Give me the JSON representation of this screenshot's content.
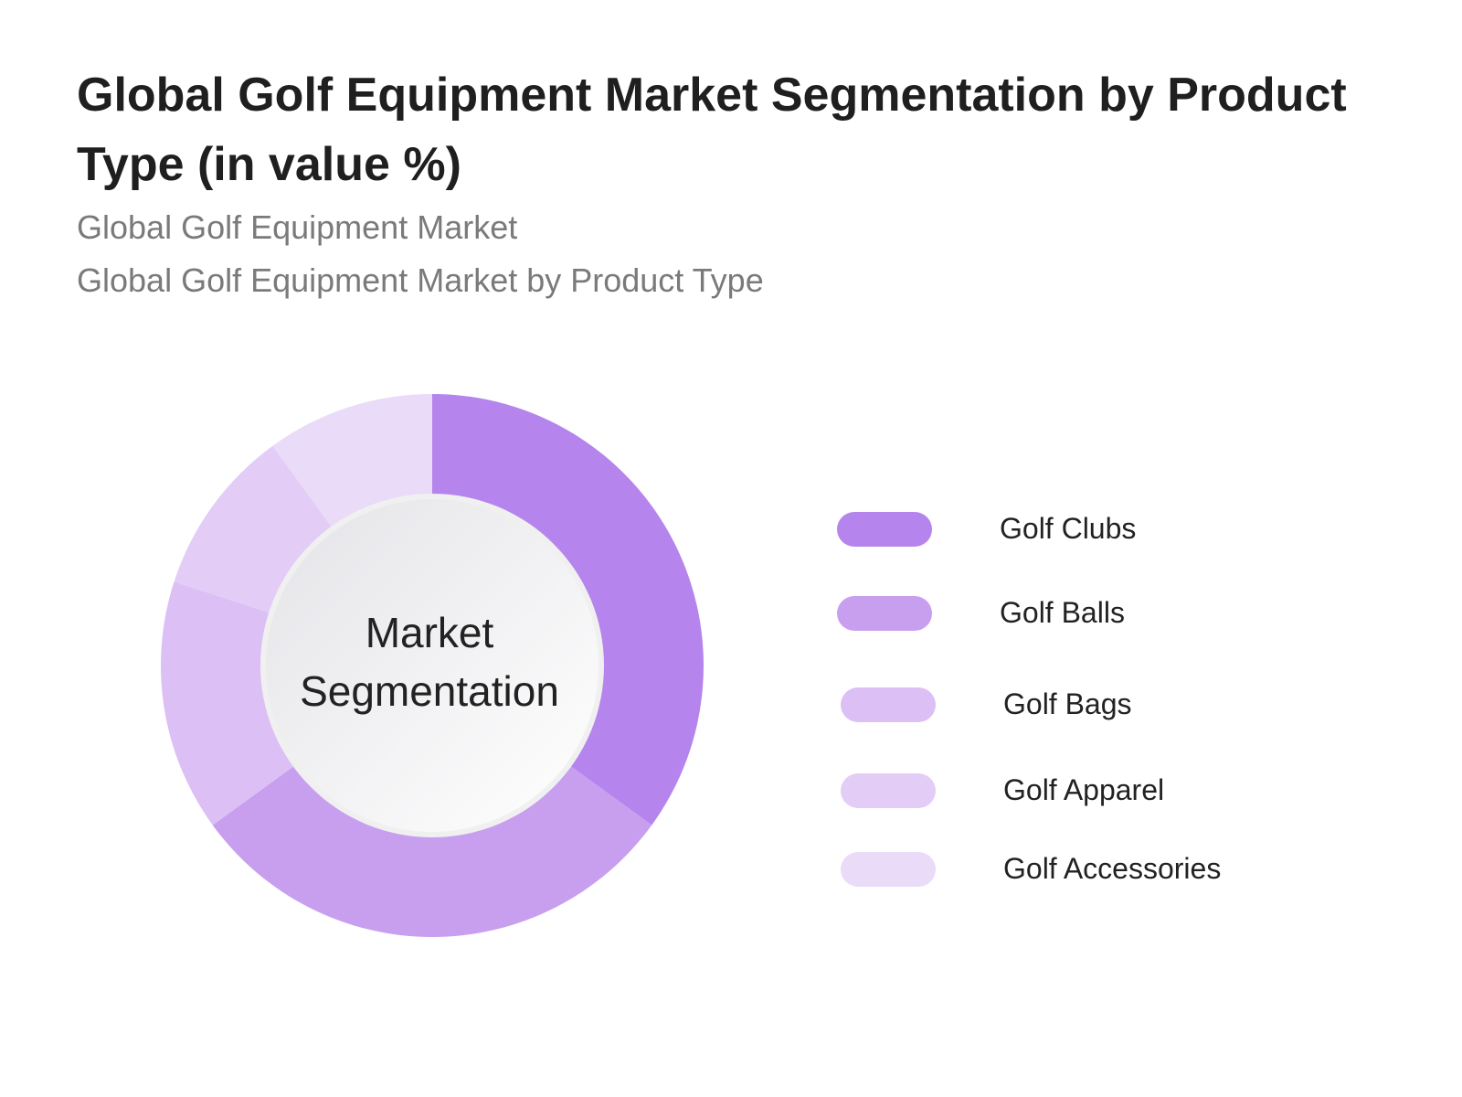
{
  "title": "Global Golf Equipment Market Segmentation by Product Type (in value %)",
  "subtitles": [
    "Global Golf Equipment Market",
    "Global Golf Equipment Market by Product Type"
  ],
  "center_label": [
    "Market",
    "Segmentation"
  ],
  "chart_data": {
    "type": "pie",
    "style": "donut",
    "categories": [
      "Golf Clubs",
      "Golf Balls",
      "Golf Bags",
      "Golf Apparel",
      "Golf Accessories"
    ],
    "values": [
      35,
      30,
      15,
      10,
      10
    ],
    "colors": [
      "#b584ec",
      "#c89fef",
      "#dcc0f5",
      "#e3cdf6",
      "#eadbf9"
    ],
    "legend_position": "right"
  }
}
